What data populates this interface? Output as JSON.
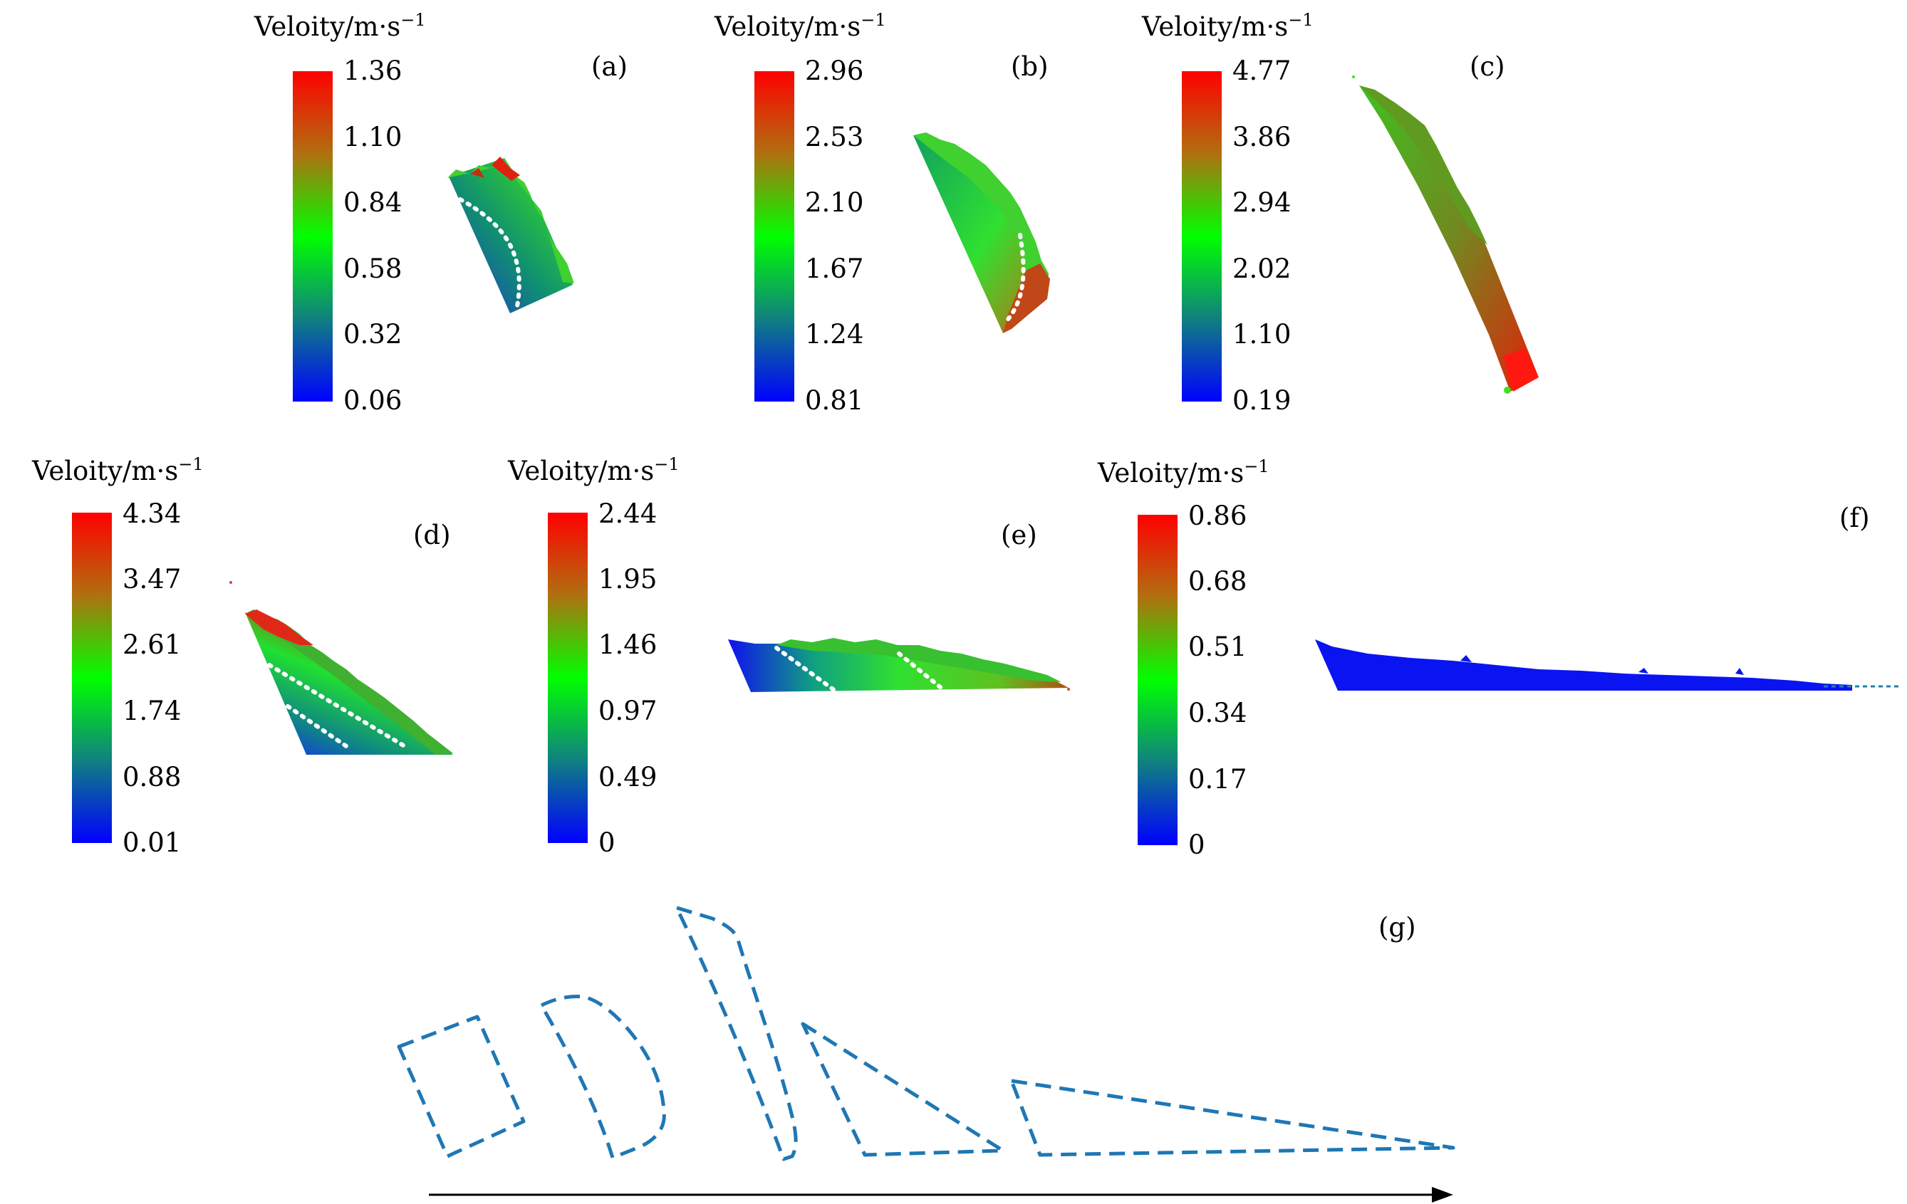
{
  "colorbar_title": "Veloity/m·s",
  "colorbar_title_exponent": "−1",
  "panels": [
    {
      "label": "(a)",
      "ticks": [
        "1.36",
        "1.10",
        "0.84",
        "0.58",
        "0.32",
        "0.06"
      ]
    },
    {
      "label": "(b)",
      "ticks": [
        "2.96",
        "2.53",
        "2.10",
        "1.67",
        "1.24",
        "0.81"
      ]
    },
    {
      "label": "(c)",
      "ticks": [
        "4.77",
        "3.86",
        "2.94",
        "2.02",
        "1.10",
        "0.19"
      ]
    },
    {
      "label": "(d)",
      "ticks": [
        "4.34",
        "3.47",
        "2.61",
        "1.74",
        "0.88",
        "0.01"
      ]
    },
    {
      "label": "(e)",
      "ticks": [
        "2.44",
        "1.95",
        "1.46",
        "0.97",
        "0.49",
        "0"
      ]
    },
    {
      "label": "(f)",
      "ticks": [
        "0.86",
        "0.68",
        "0.51",
        "0.34",
        "0.17",
        "0"
      ]
    }
  ],
  "panel_g_label": "(g)",
  "colors": {
    "high": "#ff0000",
    "mid": "#00ff00",
    "low": "#0000ff",
    "outline": "#1f77b4",
    "arrow": "#000000"
  }
}
